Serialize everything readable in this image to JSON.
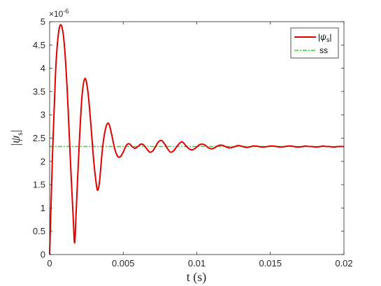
{
  "chart_data": {
    "type": "line",
    "xlabel": "t (s)",
    "ylabel": "|ψ_s|",
    "y_exponent_label": "×10",
    "y_exponent_power": "-6",
    "xlim": [
      0,
      0.02
    ],
    "ylim": [
      0,
      5
    ],
    "x_ticks": [
      0,
      0.005,
      0.01,
      0.015,
      0.02
    ],
    "x_tick_labels": [
      "0",
      "0.005",
      "0.01",
      "0.015",
      "0.02"
    ],
    "y_ticks": [
      0,
      0.5,
      1,
      1.5,
      2,
      2.5,
      3,
      3.5,
      4,
      4.5,
      5
    ],
    "y_tick_labels": [
      "0",
      "0.5",
      "1",
      "1.5",
      "2",
      "2.5",
      "3",
      "3.5",
      "4",
      "4.5",
      "5"
    ],
    "grid": false,
    "legend_position": "top-right",
    "series": [
      {
        "name": "|ψ_s|",
        "color": "#e00000",
        "style": "solid",
        "x": [
          0,
          0.0002,
          0.0004,
          0.0006,
          0.0008,
          0.001,
          0.0012,
          0.0014,
          0.0016,
          0.0017,
          0.0018,
          0.002,
          0.0022,
          0.0024,
          0.0026,
          0.0028,
          0.003,
          0.0032,
          0.0033,
          0.0034,
          0.0036,
          0.0038,
          0.004,
          0.0042,
          0.0044,
          0.0046,
          0.0048,
          0.005,
          0.0052,
          0.0054,
          0.0056,
          0.0058,
          0.006,
          0.0062,
          0.0064,
          0.0066,
          0.0068,
          0.007,
          0.0072,
          0.0074,
          0.0076,
          0.0078,
          0.008,
          0.0082,
          0.0084,
          0.0086,
          0.0088,
          0.009,
          0.0092,
          0.0094,
          0.0096,
          0.0098,
          0.01,
          0.0102,
          0.0104,
          0.0106,
          0.0108,
          0.011,
          0.0112,
          0.0114,
          0.0116,
          0.0118,
          0.012,
          0.0122,
          0.0124,
          0.0126,
          0.0128,
          0.013,
          0.0132,
          0.0134,
          0.0136,
          0.0138,
          0.014,
          0.0142,
          0.0144,
          0.0146,
          0.0148,
          0.015,
          0.0152,
          0.0154,
          0.0156,
          0.0158,
          0.016,
          0.0162,
          0.0164,
          0.0166,
          0.0168,
          0.017,
          0.0172,
          0.0174,
          0.0176,
          0.0178,
          0.018,
          0.0182,
          0.0184,
          0.0186,
          0.0188,
          0.019,
          0.0192,
          0.0194,
          0.0196,
          0.0198,
          0.02
        ],
        "y": [
          0,
          2.2,
          3.9,
          4.75,
          4.92,
          4.5,
          3.5,
          2.1,
          0.8,
          0.25,
          0.9,
          2.3,
          3.4,
          3.78,
          3.5,
          2.8,
          2.0,
          1.45,
          1.4,
          1.6,
          2.3,
          2.7,
          2.82,
          2.6,
          2.3,
          2.12,
          2.1,
          2.2,
          2.34,
          2.38,
          2.32,
          2.28,
          2.32,
          2.37,
          2.35,
          2.27,
          2.2,
          2.22,
          2.32,
          2.42,
          2.45,
          2.38,
          2.28,
          2.2,
          2.22,
          2.3,
          2.38,
          2.42,
          2.36,
          2.29,
          2.25,
          2.26,
          2.31,
          2.36,
          2.37,
          2.34,
          2.29,
          2.27,
          2.29,
          2.33,
          2.35,
          2.34,
          2.31,
          2.29,
          2.3,
          2.32,
          2.34,
          2.33,
          2.31,
          2.3,
          2.31,
          2.33,
          2.33,
          2.32,
          2.31,
          2.31,
          2.32,
          2.33,
          2.33,
          2.32,
          2.31,
          2.31,
          2.32,
          2.33,
          2.33,
          2.32,
          2.31,
          2.31,
          2.32,
          2.33,
          2.32,
          2.32,
          2.31,
          2.31,
          2.32,
          2.33,
          2.32,
          2.32,
          2.31,
          2.31,
          2.32,
          2.32,
          2.32
        ]
      },
      {
        "name": "ss",
        "color": "#22dd22",
        "style": "dash-dot",
        "x": [
          0,
          0.02
        ],
        "y": [
          2.32,
          2.32
        ]
      }
    ]
  }
}
